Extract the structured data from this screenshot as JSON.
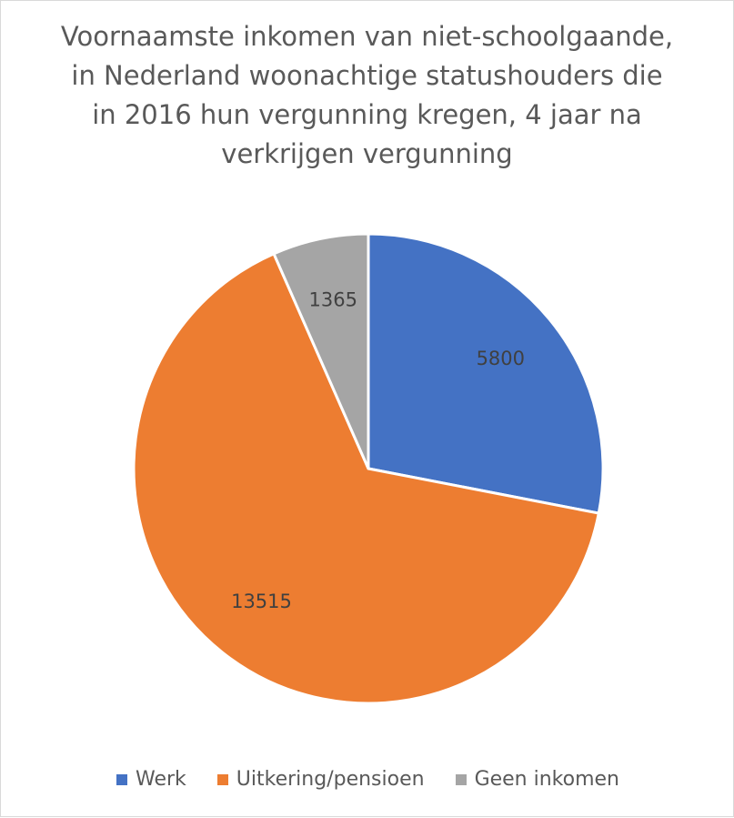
{
  "chart_data": {
    "type": "pie",
    "title": "Voornaamste inkomen van niet-schoolgaande, in Nederland woonachtige statushouders die in 2016 hun vergunning kregen, 4 jaar na verkrijgen vergunning",
    "slices": [
      {
        "label": "Werk",
        "value": 5800,
        "color": "#4472c4"
      },
      {
        "label": "Uitkering/pensioen",
        "value": 13515,
        "color": "#ed7d31"
      },
      {
        "label": "Geen inkomen",
        "value": 1365,
        "color": "#a5a5a5"
      }
    ],
    "legend_position": "bottom",
    "start_angle": "12 o'clock, clockwise"
  }
}
